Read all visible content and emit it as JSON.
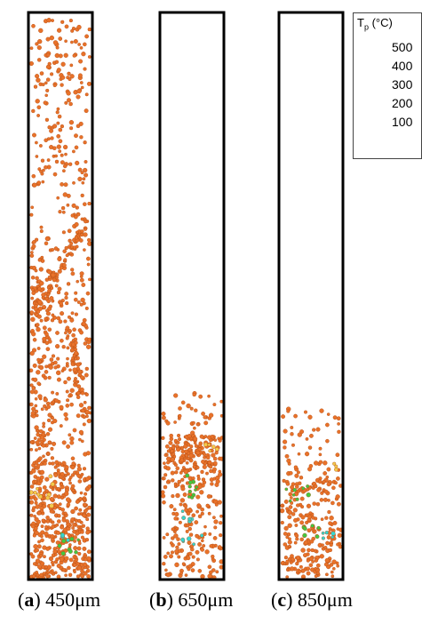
{
  "legend": {
    "title_main": "T",
    "title_sub": "p",
    "title_unit": " (°C)",
    "ticks": [
      "500",
      "400",
      "300",
      "200",
      "100"
    ],
    "colors": [
      "#d7191c",
      "#f16913",
      "#fdae61",
      "#ffe33b",
      "#a6d96a",
      "#33cc33",
      "#1bb37a",
      "#21d4c4",
      "#36b9f0",
      "#2c7bb6"
    ]
  },
  "particle_colors": {
    "dominant": "#e8722a",
    "dominant_edge": "#b24c14",
    "yellow": "#f2c94c",
    "green": "#42c742",
    "cyan": "#34d6d0"
  },
  "panels": [
    {
      "letter": "a",
      "label": "450μm"
    },
    {
      "letter": "b",
      "label": "650μm"
    },
    {
      "letter": "c",
      "label": "850μm"
    }
  ]
}
